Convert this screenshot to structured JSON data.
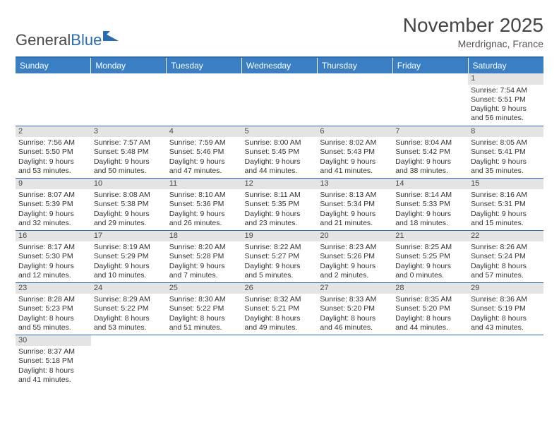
{
  "logo": {
    "text1": "General",
    "text2": "Blue"
  },
  "title": "November 2025",
  "location": "Merdrignac, France",
  "header_bg": "#3a7fc4",
  "rule_color": "#2a6cb0",
  "daynum_bg": "#e4e4e4",
  "text_color": "#333333",
  "days": [
    "Sunday",
    "Monday",
    "Tuesday",
    "Wednesday",
    "Thursday",
    "Friday",
    "Saturday"
  ],
  "weeks": [
    [
      null,
      null,
      null,
      null,
      null,
      null,
      {
        "n": "1",
        "sr": "Sunrise: 7:54 AM",
        "ss": "Sunset: 5:51 PM",
        "dl": "Daylight: 9 hours and 56 minutes."
      }
    ],
    [
      {
        "n": "2",
        "sr": "Sunrise: 7:56 AM",
        "ss": "Sunset: 5:50 PM",
        "dl": "Daylight: 9 hours and 53 minutes."
      },
      {
        "n": "3",
        "sr": "Sunrise: 7:57 AM",
        "ss": "Sunset: 5:48 PM",
        "dl": "Daylight: 9 hours and 50 minutes."
      },
      {
        "n": "4",
        "sr": "Sunrise: 7:59 AM",
        "ss": "Sunset: 5:46 PM",
        "dl": "Daylight: 9 hours and 47 minutes."
      },
      {
        "n": "5",
        "sr": "Sunrise: 8:00 AM",
        "ss": "Sunset: 5:45 PM",
        "dl": "Daylight: 9 hours and 44 minutes."
      },
      {
        "n": "6",
        "sr": "Sunrise: 8:02 AM",
        "ss": "Sunset: 5:43 PM",
        "dl": "Daylight: 9 hours and 41 minutes."
      },
      {
        "n": "7",
        "sr": "Sunrise: 8:04 AM",
        "ss": "Sunset: 5:42 PM",
        "dl": "Daylight: 9 hours and 38 minutes."
      },
      {
        "n": "8",
        "sr": "Sunrise: 8:05 AM",
        "ss": "Sunset: 5:41 PM",
        "dl": "Daylight: 9 hours and 35 minutes."
      }
    ],
    [
      {
        "n": "9",
        "sr": "Sunrise: 8:07 AM",
        "ss": "Sunset: 5:39 PM",
        "dl": "Daylight: 9 hours and 32 minutes."
      },
      {
        "n": "10",
        "sr": "Sunrise: 8:08 AM",
        "ss": "Sunset: 5:38 PM",
        "dl": "Daylight: 9 hours and 29 minutes."
      },
      {
        "n": "11",
        "sr": "Sunrise: 8:10 AM",
        "ss": "Sunset: 5:36 PM",
        "dl": "Daylight: 9 hours and 26 minutes."
      },
      {
        "n": "12",
        "sr": "Sunrise: 8:11 AM",
        "ss": "Sunset: 5:35 PM",
        "dl": "Daylight: 9 hours and 23 minutes."
      },
      {
        "n": "13",
        "sr": "Sunrise: 8:13 AM",
        "ss": "Sunset: 5:34 PM",
        "dl": "Daylight: 9 hours and 21 minutes."
      },
      {
        "n": "14",
        "sr": "Sunrise: 8:14 AM",
        "ss": "Sunset: 5:33 PM",
        "dl": "Daylight: 9 hours and 18 minutes."
      },
      {
        "n": "15",
        "sr": "Sunrise: 8:16 AM",
        "ss": "Sunset: 5:31 PM",
        "dl": "Daylight: 9 hours and 15 minutes."
      }
    ],
    [
      {
        "n": "16",
        "sr": "Sunrise: 8:17 AM",
        "ss": "Sunset: 5:30 PM",
        "dl": "Daylight: 9 hours and 12 minutes."
      },
      {
        "n": "17",
        "sr": "Sunrise: 8:19 AM",
        "ss": "Sunset: 5:29 PM",
        "dl": "Daylight: 9 hours and 10 minutes."
      },
      {
        "n": "18",
        "sr": "Sunrise: 8:20 AM",
        "ss": "Sunset: 5:28 PM",
        "dl": "Daylight: 9 hours and 7 minutes."
      },
      {
        "n": "19",
        "sr": "Sunrise: 8:22 AM",
        "ss": "Sunset: 5:27 PM",
        "dl": "Daylight: 9 hours and 5 minutes."
      },
      {
        "n": "20",
        "sr": "Sunrise: 8:23 AM",
        "ss": "Sunset: 5:26 PM",
        "dl": "Daylight: 9 hours and 2 minutes."
      },
      {
        "n": "21",
        "sr": "Sunrise: 8:25 AM",
        "ss": "Sunset: 5:25 PM",
        "dl": "Daylight: 9 hours and 0 minutes."
      },
      {
        "n": "22",
        "sr": "Sunrise: 8:26 AM",
        "ss": "Sunset: 5:24 PM",
        "dl": "Daylight: 8 hours and 57 minutes."
      }
    ],
    [
      {
        "n": "23",
        "sr": "Sunrise: 8:28 AM",
        "ss": "Sunset: 5:23 PM",
        "dl": "Daylight: 8 hours and 55 minutes."
      },
      {
        "n": "24",
        "sr": "Sunrise: 8:29 AM",
        "ss": "Sunset: 5:22 PM",
        "dl": "Daylight: 8 hours and 53 minutes."
      },
      {
        "n": "25",
        "sr": "Sunrise: 8:30 AM",
        "ss": "Sunset: 5:22 PM",
        "dl": "Daylight: 8 hours and 51 minutes."
      },
      {
        "n": "26",
        "sr": "Sunrise: 8:32 AM",
        "ss": "Sunset: 5:21 PM",
        "dl": "Daylight: 8 hours and 49 minutes."
      },
      {
        "n": "27",
        "sr": "Sunrise: 8:33 AM",
        "ss": "Sunset: 5:20 PM",
        "dl": "Daylight: 8 hours and 46 minutes."
      },
      {
        "n": "28",
        "sr": "Sunrise: 8:35 AM",
        "ss": "Sunset: 5:20 PM",
        "dl": "Daylight: 8 hours and 44 minutes."
      },
      {
        "n": "29",
        "sr": "Sunrise: 8:36 AM",
        "ss": "Sunset: 5:19 PM",
        "dl": "Daylight: 8 hours and 43 minutes."
      }
    ],
    [
      {
        "n": "30",
        "sr": "Sunrise: 8:37 AM",
        "ss": "Sunset: 5:18 PM",
        "dl": "Daylight: 8 hours and 41 minutes."
      },
      null,
      null,
      null,
      null,
      null,
      null
    ]
  ]
}
